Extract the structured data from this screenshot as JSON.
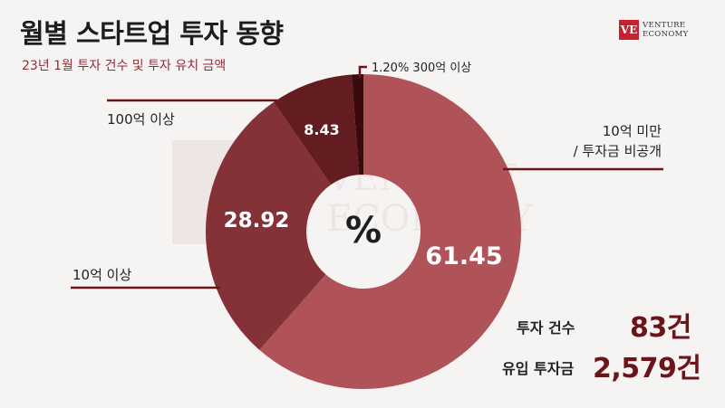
{
  "header": {
    "title": "월별 스타트업 투자 동향",
    "subtitle": "23년 1월 투자 건수 및 투자 유치 금액"
  },
  "logo": {
    "mark": "VE",
    "line1": "VENTURE",
    "line2": "ECONOMY"
  },
  "watermark": {
    "line1": "VENTURE",
    "line2": "ECONOMY"
  },
  "chart_data": {
    "type": "pie",
    "donut": true,
    "center_label": "%",
    "slices": [
      {
        "label": "10억 미만 / 투자금 비공개",
        "value": 61.45,
        "value_label": "61.45",
        "color": "#b05358"
      },
      {
        "label": "10억 이상",
        "value": 28.92,
        "value_label": "28.92",
        "color": "#843138"
      },
      {
        "label": "100억 이상",
        "value": 8.43,
        "value_label": "8.43",
        "color": "#631d21"
      },
      {
        "label": "300억 이상",
        "value": 1.2,
        "value_label": "1.20%",
        "color": "#3b0a0d"
      }
    ]
  },
  "labels": {
    "lt10": [
      "10억 미만",
      "/ 투자금 비공개"
    ],
    "gte10": "10억 이상",
    "gte100": "100억 이상",
    "gte300": "1.20% 300억 이상"
  },
  "stats": {
    "count_label": "투자 건수",
    "count_value": "83건",
    "amount_label": "유입 투자금",
    "amount_value": "2,579건"
  },
  "colors": {
    "accent": "#8f2d35",
    "leader": "#6b1419"
  }
}
